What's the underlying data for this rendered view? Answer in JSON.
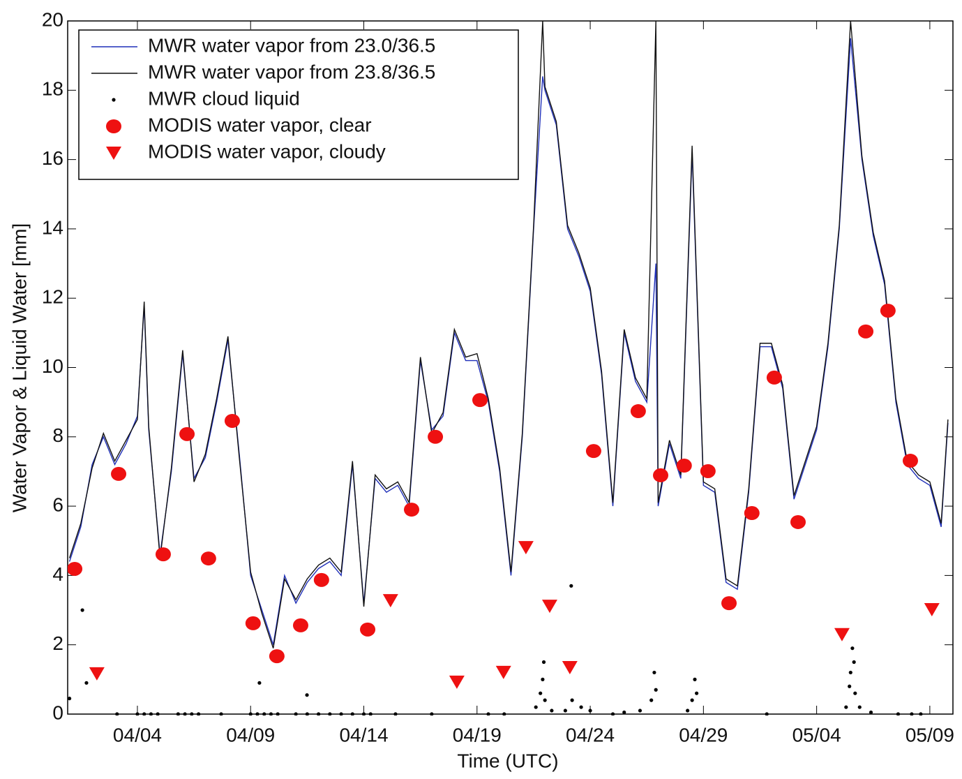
{
  "chart_data": {
    "type": "line",
    "xlabel": "Time (UTC)",
    "ylabel": "Water Vapor & Liquid Water [mm]",
    "xlim": [
      0.92,
      40.02
    ],
    "xticks": [
      {
        "value": 4,
        "label": "04/04"
      },
      {
        "value": 9,
        "label": "04/09"
      },
      {
        "value": 14,
        "label": "04/14"
      },
      {
        "value": 19,
        "label": "04/19"
      },
      {
        "value": 24,
        "label": "04/24"
      },
      {
        "value": 29,
        "label": "04/29"
      },
      {
        "value": 34,
        "label": "05/04"
      },
      {
        "value": 39,
        "label": "05/09"
      }
    ],
    "ylim": [
      0,
      20
    ],
    "yticks": [
      0,
      2,
      4,
      6,
      8,
      10,
      12,
      14,
      16,
      18,
      20
    ],
    "legend": "upper left",
    "series": [
      {
        "name": "MWR water vapor from 23.0/36.5",
        "color": "#1f2fb8",
        "marker": "line",
        "x": [
          1,
          1.5,
          2,
          2.5,
          3,
          3.5,
          4,
          4.3,
          4.5,
          5,
          5.5,
          6,
          6.5,
          7,
          7.5,
          8,
          8.5,
          9,
          9.5,
          10,
          10.5,
          11,
          11.5,
          12,
          12.5,
          13,
          13.5,
          14,
          14.5,
          15,
          15.5,
          16,
          16.5,
          17,
          17.5,
          18,
          18.5,
          19,
          19.5,
          20,
          20.5,
          21,
          21.5,
          21.9,
          22,
          22.5,
          23,
          23.5,
          24,
          24.5,
          25,
          25.5,
          26,
          26.5,
          26.9,
          27,
          27.5,
          28,
          28.5,
          29,
          29.5,
          30,
          30.5,
          31,
          31.5,
          32,
          32.5,
          33,
          33.5,
          34,
          34.5,
          35,
          35.5,
          36,
          36.5,
          37,
          37.5,
          38,
          38.5,
          39,
          39.5,
          39.8
        ],
        "values": [
          4.4,
          5.4,
          7.2,
          8.0,
          7.2,
          7.8,
          8.6,
          11.8,
          8.2,
          4.6,
          7.0,
          10.4,
          6.8,
          7.4,
          9.0,
          10.8,
          7.5,
          4.0,
          3.0,
          2.0,
          4.0,
          3.2,
          3.8,
          4.2,
          4.4,
          4.0,
          7.2,
          3.2,
          6.8,
          6.4,
          6.6,
          6.0,
          10.2,
          8.2,
          8.6,
          11.0,
          10.2,
          10.2,
          9.0,
          7.0,
          4.0,
          8.0,
          14.0,
          18.4,
          18.0,
          17.0,
          14.0,
          13.2,
          12.2,
          9.8,
          6.0,
          11.0,
          9.6,
          9.0,
          13.0,
          6.0,
          7.8,
          6.8,
          16.2,
          6.6,
          6.4,
          3.8,
          3.6,
          6.4,
          10.6,
          10.6,
          9.4,
          6.2,
          7.2,
          8.2,
          10.6,
          14.0,
          19.5,
          16.0,
          13.8,
          12.4,
          9.0,
          7.2,
          6.8,
          6.6,
          5.4,
          8.4
        ]
      },
      {
        "name": "MWR water vapor from 23.8/36.5",
        "color": "#111111",
        "marker": "line",
        "x": [
          1,
          1.5,
          2,
          2.5,
          3,
          3.5,
          4,
          4.3,
          4.5,
          5,
          5.5,
          6,
          6.5,
          7,
          7.5,
          8,
          8.5,
          9,
          9.5,
          10,
          10.5,
          11,
          11.5,
          12,
          12.5,
          13,
          13.5,
          14,
          14.5,
          15,
          15.5,
          16,
          16.5,
          17,
          17.5,
          18,
          18.5,
          19,
          19.5,
          20,
          20.5,
          21,
          21.5,
          21.9,
          22,
          22.5,
          23,
          23.5,
          24,
          24.5,
          25,
          25.5,
          26,
          26.5,
          26.9,
          27,
          27.5,
          28,
          28.5,
          29,
          29.5,
          30,
          30.5,
          31,
          31.5,
          32,
          32.5,
          33,
          33.5,
          34,
          34.5,
          35,
          35.5,
          36,
          36.5,
          37,
          37.5,
          38,
          38.5,
          39,
          39.5,
          39.8
        ],
        "values": [
          4.5,
          5.5,
          7.1,
          8.1,
          7.3,
          7.9,
          8.5,
          11.9,
          8.3,
          4.5,
          7.1,
          10.5,
          6.7,
          7.5,
          9.1,
          10.9,
          7.4,
          4.1,
          2.9,
          1.9,
          3.9,
          3.3,
          3.9,
          4.3,
          4.5,
          4.1,
          7.3,
          3.1,
          6.9,
          6.5,
          6.7,
          6.1,
          10.3,
          8.1,
          8.7,
          11.1,
          10.3,
          10.4,
          9.1,
          7.1,
          4.1,
          8.1,
          14.1,
          20.0,
          18.1,
          17.1,
          14.1,
          13.3,
          12.3,
          9.9,
          6.1,
          11.1,
          9.7,
          9.1,
          20.0,
          6.1,
          7.9,
          6.9,
          16.4,
          6.7,
          6.5,
          3.9,
          3.7,
          6.5,
          10.7,
          10.7,
          9.5,
          6.3,
          7.3,
          8.3,
          10.7,
          14.1,
          20.0,
          16.1,
          13.9,
          12.5,
          9.1,
          7.3,
          6.9,
          6.7,
          5.5,
          8.5
        ]
      },
      {
        "name": "MWR cloud liquid",
        "color": "#000000",
        "marker": "dot",
        "x": [
          1.0,
          1.57,
          1.75,
          3.1,
          4.0,
          4.3,
          4.6,
          4.9,
          5.8,
          6.1,
          6.4,
          6.7,
          7.7,
          9.0,
          9.3,
          9.39,
          9.6,
          9.9,
          10.2,
          11.0,
          11.49,
          11.5,
          12.0,
          12.5,
          13.0,
          13.5,
          14.0,
          14.3,
          15.4,
          17.0,
          19.5,
          20.2,
          21.6,
          21.8,
          21.9,
          21.95,
          22.0,
          22.3,
          22.9,
          23.16,
          23.2,
          23.6,
          24.0,
          25.0,
          25.5,
          26.2,
          26.7,
          26.83,
          26.9,
          28.3,
          28.5,
          28.62,
          28.7,
          31.8,
          35.3,
          35.45,
          35.5,
          35.58,
          35.65,
          35.7,
          35.9,
          36.4,
          37.6,
          38.2,
          38.6
        ],
        "values": [
          0.45,
          3.0,
          0.9,
          0,
          0,
          0,
          0,
          0,
          0,
          0,
          0,
          0,
          0,
          0,
          0,
          0.9,
          0,
          0,
          0,
          0,
          0.55,
          0,
          0,
          0,
          0,
          0,
          0,
          0,
          0,
          0,
          0,
          0,
          0.2,
          0.6,
          1.0,
          1.5,
          0.4,
          0.1,
          0.1,
          3.7,
          0.4,
          0.2,
          0.1,
          0,
          0.05,
          0.1,
          0.4,
          1.2,
          0.7,
          0.1,
          0.4,
          1.0,
          0.6,
          0,
          0.2,
          0.8,
          1.2,
          1.9,
          1.5,
          0.6,
          0.2,
          0.05,
          0,
          0,
          0
        ]
      },
      {
        "name": "MODIS water vapor, clear",
        "color": "#ee1111",
        "marker": "circle",
        "x": [
          1.23,
          3.17,
          5.14,
          6.19,
          7.14,
          8.19,
          9.11,
          10.16,
          11.21,
          12.13,
          14.17,
          16.11,
          17.16,
          19.13,
          24.15,
          26.12,
          27.11,
          28.15,
          29.2,
          30.13,
          31.14,
          32.13,
          33.18,
          36.17,
          37.15,
          38.14
        ],
        "values": [
          4.19,
          6.93,
          4.61,
          8.08,
          4.49,
          8.46,
          2.62,
          1.67,
          2.56,
          3.87,
          2.44,
          5.9,
          8.0,
          9.06,
          7.59,
          8.74,
          6.89,
          7.17,
          7.01,
          3.2,
          5.8,
          9.71,
          5.54,
          11.04,
          11.64,
          7.31
        ]
      },
      {
        "name": "MODIS water vapor, cloudy",
        "color": "#ee1111",
        "marker": "triangle",
        "x": [
          2.21,
          15.18,
          18.11,
          20.17,
          21.16,
          22.21,
          23.1,
          35.12,
          39.09
        ],
        "values": [
          1.17,
          3.28,
          0.93,
          1.21,
          4.81,
          3.12,
          1.35,
          2.3,
          3.02
        ]
      }
    ]
  }
}
